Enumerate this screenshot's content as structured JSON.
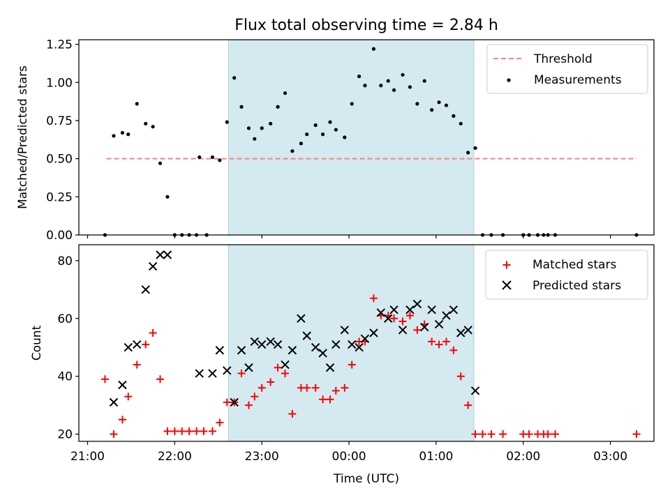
{
  "figure": {
    "title": "Flux total observing time = 2.84 h",
    "xlabel": "Time (UTC)",
    "x_tick_labels": [
      "21:00",
      "22:00",
      "23:00",
      "00:00",
      "01:00",
      "02:00",
      "03:00"
    ]
  },
  "colors": {
    "shade": "#d4eaf0",
    "shade_edge": "#a9d3de",
    "threshold": "#ff7f7f",
    "measurement": "#000000",
    "matched": "#ff0000",
    "predicted": "#000000"
  },
  "chart_data": [
    {
      "type": "scatter",
      "panel": "top",
      "ylabel": "Matched/Predicted stars",
      "ylim": [
        0,
        1.28
      ],
      "yticks": [
        0.0,
        0.25,
        0.5,
        0.75,
        1.0,
        1.25
      ],
      "y_tick_labels": [
        "0.00",
        "0.25",
        "0.50",
        "0.75",
        "1.00",
        "1.25"
      ],
      "x_unit": "hours after 21:00 UTC (x axis shows clock time)",
      "xlim": [
        -0.1,
        6.5
      ],
      "legend": {
        "placement": "top-right",
        "entries": [
          "Threshold",
          "Measurements"
        ]
      },
      "shaded_interval": [
        "22:37",
        "01:26"
      ],
      "threshold": {
        "name": "Threshold",
        "value": 0.5,
        "x_range": [
          "21:13",
          "03:18"
        ],
        "style": "dashed"
      },
      "series": [
        {
          "name": "Measurements",
          "marker": "dot",
          "points": [
            [
              "21:12",
              0.0
            ],
            [
              "21:18",
              0.65
            ],
            [
              "21:24",
              0.67
            ],
            [
              "21:28",
              0.66
            ],
            [
              "21:34",
              0.86
            ],
            [
              "21:40",
              0.73
            ],
            [
              "21:45",
              0.71
            ],
            [
              "21:50",
              0.47
            ],
            [
              "21:55",
              0.25
            ],
            [
              "22:00",
              0.0
            ],
            [
              "22:05",
              0.0
            ],
            [
              "22:10",
              0.0
            ],
            [
              "22:15",
              0.0
            ],
            [
              "22:17",
              0.51
            ],
            [
              "22:22",
              0.0
            ],
            [
              "22:26",
              0.51
            ],
            [
              "22:31",
              0.49
            ],
            [
              "22:36",
              0.74
            ],
            [
              "22:41",
              1.03
            ],
            [
              "22:46",
              0.84
            ],
            [
              "22:51",
              0.7
            ],
            [
              "22:55",
              0.63
            ],
            [
              "23:00",
              0.7
            ],
            [
              "23:06",
              0.73
            ],
            [
              "23:11",
              0.84
            ],
            [
              "23:16",
              0.93
            ],
            [
              "23:21",
              0.55
            ],
            [
              "23:27",
              0.6
            ],
            [
              "23:31",
              0.66
            ],
            [
              "23:37",
              0.72
            ],
            [
              "23:42",
              0.66
            ],
            [
              "23:47",
              0.74
            ],
            [
              "23:51",
              0.69
            ],
            [
              "23:57",
              0.64
            ],
            [
              "00:02",
              0.86
            ],
            [
              "00:07",
              1.04
            ],
            [
              "00:11",
              0.98
            ],
            [
              "00:17",
              1.22
            ],
            [
              "00:22",
              0.98
            ],
            [
              "00:27",
              1.01
            ],
            [
              "00:31",
              0.95
            ],
            [
              "00:37",
              1.05
            ],
            [
              "00:42",
              0.97
            ],
            [
              "00:47",
              0.86
            ],
            [
              "00:52",
              1.01
            ],
            [
              "00:57",
              0.82
            ],
            [
              "01:02",
              0.87
            ],
            [
              "01:07",
              0.85
            ],
            [
              "01:12",
              0.78
            ],
            [
              "01:17",
              0.73
            ],
            [
              "01:22",
              0.54
            ],
            [
              "01:27",
              0.57
            ],
            [
              "01:32",
              0.0
            ],
            [
              "01:38",
              0.0
            ],
            [
              "01:46",
              0.0
            ],
            [
              "02:00",
              0.0
            ],
            [
              "02:04",
              0.0
            ],
            [
              "02:10",
              0.0
            ],
            [
              "02:14",
              0.0
            ],
            [
              "02:17",
              0.0
            ],
            [
              "02:22",
              0.0
            ],
            [
              "03:18",
              0.0
            ]
          ]
        }
      ]
    },
    {
      "type": "scatter",
      "panel": "bottom",
      "ylabel": "Count",
      "ylim": [
        17.5,
        85.5
      ],
      "yticks": [
        20,
        40,
        60,
        80
      ],
      "y_tick_labels": [
        "20",
        "40",
        "60",
        "80"
      ],
      "x_unit": "hours after 21:00 UTC (x axis shows clock time)",
      "xlim": [
        -0.1,
        6.5
      ],
      "legend": {
        "placement": "top-right",
        "entries": [
          "Matched stars",
          "Predicted stars"
        ]
      },
      "shaded_interval": [
        "22:37",
        "01:26"
      ],
      "series": [
        {
          "name": "Matched stars",
          "marker": "plus",
          "points": [
            [
              "21:12",
              39
            ],
            [
              "21:18",
              20
            ],
            [
              "21:24",
              25
            ],
            [
              "21:28",
              33
            ],
            [
              "21:34",
              44
            ],
            [
              "21:40",
              51
            ],
            [
              "21:45",
              55
            ],
            [
              "21:50",
              39
            ],
            [
              "21:55",
              21
            ],
            [
              "22:00",
              21
            ],
            [
              "22:05",
              21
            ],
            [
              "22:10",
              21
            ],
            [
              "22:15",
              21
            ],
            [
              "22:20",
              21
            ],
            [
              "22:26",
              21
            ],
            [
              "22:31",
              24
            ],
            [
              "22:36",
              31
            ],
            [
              "22:41",
              31
            ],
            [
              "22:46",
              41
            ],
            [
              "22:51",
              30
            ],
            [
              "22:55",
              33
            ],
            [
              "23:00",
              36
            ],
            [
              "23:06",
              38
            ],
            [
              "23:11",
              43
            ],
            [
              "23:16",
              41
            ],
            [
              "23:21",
              27
            ],
            [
              "23:27",
              36
            ],
            [
              "23:31",
              36
            ],
            [
              "23:37",
              36
            ],
            [
              "23:42",
              32
            ],
            [
              "23:47",
              32
            ],
            [
              "23:51",
              35
            ],
            [
              "23:57",
              36
            ],
            [
              "00:02",
              44
            ],
            [
              "00:07",
              52
            ],
            [
              "00:11",
              52
            ],
            [
              "00:17",
              67
            ],
            [
              "00:22",
              61
            ],
            [
              "00:27",
              61
            ],
            [
              "00:31",
              60
            ],
            [
              "00:37",
              59
            ],
            [
              "00:42",
              61
            ],
            [
              "00:47",
              56
            ],
            [
              "00:52",
              58
            ],
            [
              "00:57",
              52
            ],
            [
              "01:02",
              51
            ],
            [
              "01:07",
              52
            ],
            [
              "01:12",
              49
            ],
            [
              "01:17",
              40
            ],
            [
              "01:22",
              30
            ],
            [
              "01:27",
              20
            ],
            [
              "01:32",
              20
            ],
            [
              "01:38",
              20
            ],
            [
              "01:46",
              20
            ],
            [
              "02:00",
              20
            ],
            [
              "02:04",
              20
            ],
            [
              "02:10",
              20
            ],
            [
              "02:14",
              20
            ],
            [
              "02:17",
              20
            ],
            [
              "02:22",
              20
            ],
            [
              "03:18",
              20
            ]
          ]
        },
        {
          "name": "Predicted stars",
          "marker": "x",
          "points": [
            [
              "21:18",
              31
            ],
            [
              "21:24",
              37
            ],
            [
              "21:28",
              50
            ],
            [
              "21:34",
              51
            ],
            [
              "21:40",
              70
            ],
            [
              "21:45",
              78
            ],
            [
              "21:50",
              82
            ],
            [
              "21:55",
              82
            ],
            [
              "22:17",
              41
            ],
            [
              "22:26",
              41
            ],
            [
              "22:31",
              49
            ],
            [
              "22:36",
              42
            ],
            [
              "22:41",
              31
            ],
            [
              "22:46",
              49
            ],
            [
              "22:51",
              43
            ],
            [
              "22:55",
              52
            ],
            [
              "23:00",
              51
            ],
            [
              "23:06",
              52
            ],
            [
              "23:11",
              51
            ],
            [
              "23:16",
              44
            ],
            [
              "23:21",
              49
            ],
            [
              "23:27",
              60
            ],
            [
              "23:31",
              54
            ],
            [
              "23:37",
              50
            ],
            [
              "23:42",
              48
            ],
            [
              "23:47",
              43
            ],
            [
              "23:51",
              51
            ],
            [
              "23:57",
              56
            ],
            [
              "00:02",
              51
            ],
            [
              "00:07",
              50
            ],
            [
              "00:11",
              53
            ],
            [
              "00:17",
              55
            ],
            [
              "00:22",
              62
            ],
            [
              "00:27",
              60
            ],
            [
              "00:31",
              63
            ],
            [
              "00:37",
              56
            ],
            [
              "00:42",
              63
            ],
            [
              "00:47",
              65
            ],
            [
              "00:52",
              57
            ],
            [
              "00:57",
              63
            ],
            [
              "01:02",
              58
            ],
            [
              "01:07",
              61
            ],
            [
              "01:12",
              63
            ],
            [
              "01:17",
              55
            ],
            [
              "01:22",
              56
            ],
            [
              "01:27",
              35
            ]
          ]
        }
      ]
    }
  ]
}
